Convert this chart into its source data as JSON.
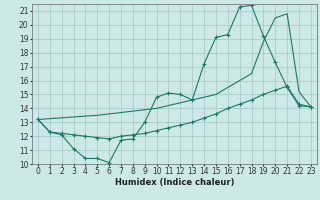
{
  "xlabel": "Humidex (Indice chaleur)",
  "bg_color": "#cce8e8",
  "grid_color": "#aacccc",
  "line_color": "#1a7a6a",
  "xlim": [
    -0.5,
    23.5
  ],
  "ylim": [
    10,
    21.5
  ],
  "xticks": [
    0,
    1,
    2,
    3,
    4,
    5,
    6,
    7,
    8,
    9,
    10,
    11,
    12,
    13,
    14,
    15,
    16,
    17,
    18,
    19,
    20,
    21,
    22,
    23
  ],
  "yticks": [
    10,
    11,
    12,
    13,
    14,
    15,
    16,
    17,
    18,
    19,
    20,
    21
  ],
  "line1_x": [
    0,
    1,
    2,
    3,
    4,
    5,
    6,
    7,
    8,
    9,
    10,
    11,
    12,
    13,
    14,
    15,
    16,
    17,
    18,
    19,
    20,
    21,
    22,
    23
  ],
  "line1_y": [
    13.2,
    12.3,
    12.1,
    11.1,
    10.4,
    10.4,
    10.1,
    11.7,
    11.8,
    13.0,
    14.8,
    15.1,
    15.0,
    14.6,
    17.2,
    19.1,
    19.3,
    21.3,
    21.4,
    19.2,
    17.3,
    15.5,
    14.2,
    14.1
  ],
  "line2_x": [
    0,
    1,
    2,
    3,
    4,
    5,
    6,
    7,
    8,
    9,
    10,
    11,
    12,
    13,
    14,
    15,
    16,
    17,
    18,
    19,
    20,
    21,
    22,
    23
  ],
  "line2_y": [
    13.2,
    12.3,
    12.2,
    12.1,
    12.0,
    11.9,
    11.8,
    12.0,
    12.1,
    12.2,
    12.4,
    12.6,
    12.8,
    13.0,
    13.3,
    13.6,
    14.0,
    14.3,
    14.6,
    15.0,
    15.3,
    15.6,
    14.3,
    14.1
  ],
  "line3_x": [
    0,
    5,
    10,
    15,
    18,
    19,
    20,
    21,
    22,
    23
  ],
  "line3_y": [
    13.2,
    13.5,
    14.0,
    15.0,
    16.5,
    18.8,
    20.5,
    20.8,
    15.2,
    14.1
  ]
}
